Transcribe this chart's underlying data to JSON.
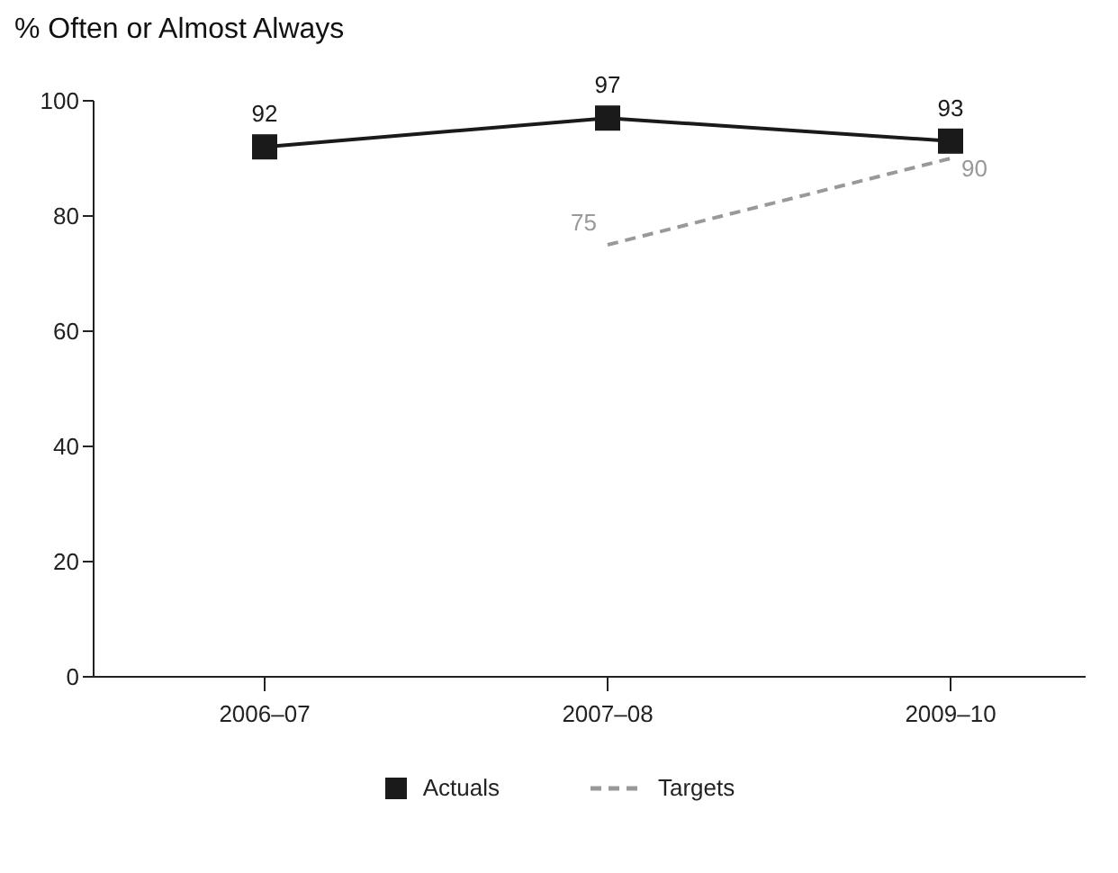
{
  "chart_data": {
    "type": "line",
    "ylabel": "% Often or Almost Always",
    "categories": [
      "2006–07",
      "2007–08",
      "2009–10"
    ],
    "series": [
      {
        "name": "Actuals",
        "color": "#1a1a1a",
        "values": [
          92,
          97,
          93
        ],
        "marker": "square",
        "line_style": "solid"
      },
      {
        "name": "Targets",
        "color": "#999999",
        "values": [
          null,
          75,
          90
        ],
        "marker": "none",
        "line_style": "dashed"
      }
    ],
    "ylim": [
      0,
      100
    ],
    "yticks": [
      0,
      20,
      40,
      60,
      80,
      100
    ],
    "grid": false,
    "legend": "bottom",
    "data_labels": true
  }
}
